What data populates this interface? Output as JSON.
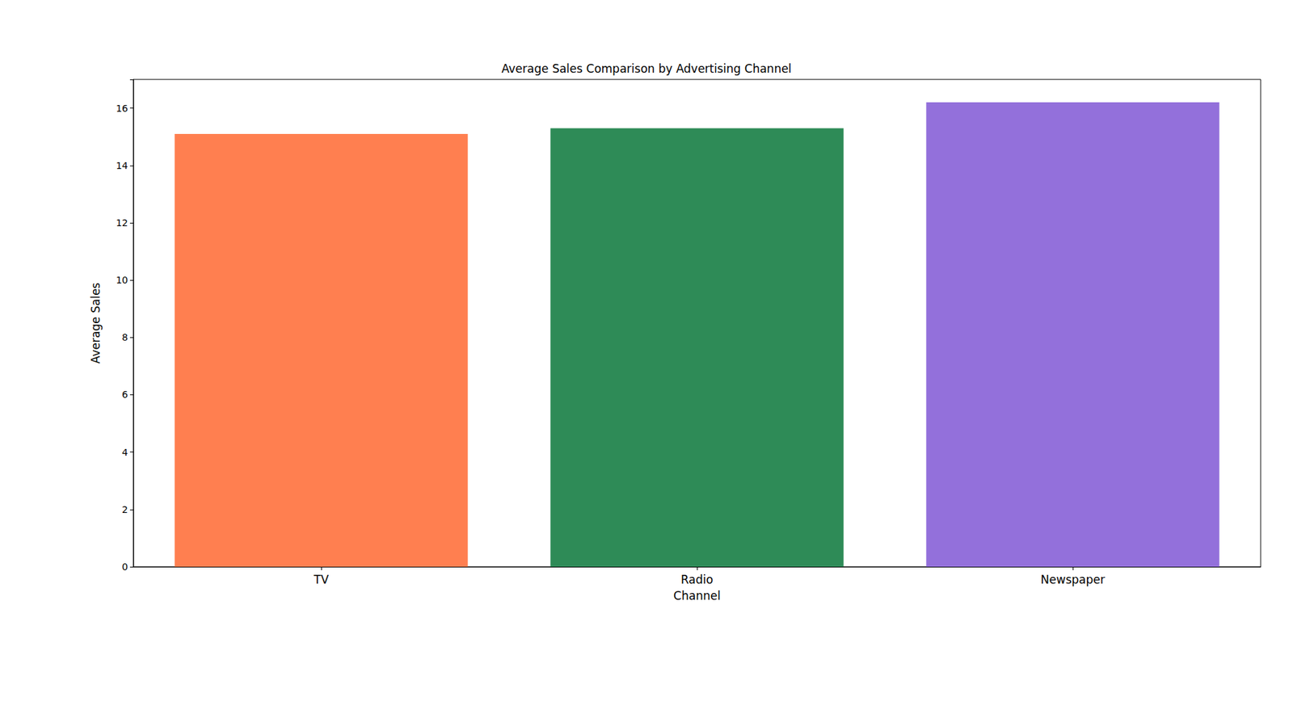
{
  "chart_data": {
    "type": "bar",
    "title": "Average Sales Comparison by Advertising Channel",
    "x_label": "Channel",
    "y_label": "Average Sales",
    "categories": [
      "TV",
      "Radio",
      "Newspaper"
    ],
    "values": [
      15.1,
      15.3,
      16.2
    ],
    "colors": [
      "#ff7f50",
      "#2e8b57",
      "#9370db"
    ],
    "ylim": [
      0,
      17
    ],
    "yticks": [
      0,
      2,
      4,
      6,
      8,
      10,
      12,
      14,
      16
    ],
    "grid": false
  }
}
